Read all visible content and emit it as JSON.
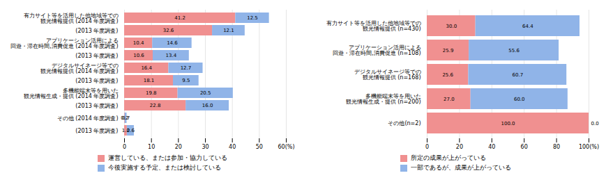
{
  "chart_data": [
    {
      "type": "bar",
      "orientation": "horizontal",
      "stacked": true,
      "categories": [
        "有力サイト等を活用した他地域等での\n観光情報提供 (2014 年度調査)",
        "(2013 年度調査)",
        "アプリケーション活用による\n回遊・滞在時間,消費促進 (2014 年度調査)",
        "(2013 年度調査)",
        "デジタルサイネージ等での\n観光情報提供 (2014 年度調査)",
        "(2013 年度調査)",
        "多機能端末等を用いた\n観光情報生成・提供 (2014 年度調査)",
        "(2013 年度調査)",
        "その他 (2014 年度調査)",
        "(2013 年度調査)"
      ],
      "series": [
        {
          "name": "運営している、または参加・協力している",
          "color": "#f09090",
          "values": [
            41.2,
            32.6,
            10.4,
            10.6,
            16.4,
            18.1,
            19.8,
            22.8,
            0.2,
            1.0
          ],
          "value_labels": [
            "41.2",
            "32.6",
            "10.4",
            "10.6",
            "16.4",
            "18.1",
            "19.8",
            "22.8",
            "0.2",
            "1.0"
          ]
        },
        {
          "name": "今後実施する予定、または検討している",
          "color": "#90b4e8",
          "values": [
            12.5,
            12.1,
            14.6,
            13.4,
            12.7,
            9.5,
            20.5,
            16.0,
            0.7,
            2.6
          ],
          "value_labels": [
            "12.5",
            "12.1",
            "14.6",
            "13.4",
            "12.7",
            "9.5",
            "20.5",
            "16.0",
            "0.7",
            "2.6"
          ]
        }
      ],
      "xlim": [
        0,
        60
      ],
      "xticks": [
        0,
        10,
        20,
        30,
        40,
        50,
        {
          "value": 60,
          "label": "60(%)"
        }
      ],
      "grid": true,
      "data_labels": true,
      "legend": "bottom"
    },
    {
      "type": "bar",
      "orientation": "horizontal",
      "stacked": true,
      "categories": [
        "有力サイト等を活用した他地域等での\n観光情報提供 (n=430)",
        "アプリケーション活用による\n回遊・滞在時間,消費促進 (n=108)",
        "デジタルサイネージ等での\n観光情報提供 (n=168)",
        "多機能端末等を用いた\n観光情報生成・提供 (n=200)",
        "その他(n=2)"
      ],
      "series": [
        {
          "name": "所定の成果が上がっている",
          "color": "#f09090",
          "values": [
            30.0,
            25.9,
            25.6,
            27.0,
            100.0
          ],
          "value_labels": [
            "30.0",
            "25.9",
            "25.6",
            "27.0",
            "100.0"
          ]
        },
        {
          "name": "一部であるが、成果が上がっている",
          "color": "#90b4e8",
          "values": [
            64.4,
            55.6,
            60.7,
            60.0,
            0.0
          ],
          "value_labels": [
            "64.4",
            "55.6",
            "60.7",
            "60.0",
            "0.0"
          ]
        }
      ],
      "xlim": [
        0,
        100
      ],
      "xticks": [
        0,
        20,
        40,
        60,
        80,
        {
          "value": 100,
          "label": "100(%)"
        }
      ],
      "grid": true,
      "data_labels": true,
      "legend": "bottom"
    }
  ]
}
